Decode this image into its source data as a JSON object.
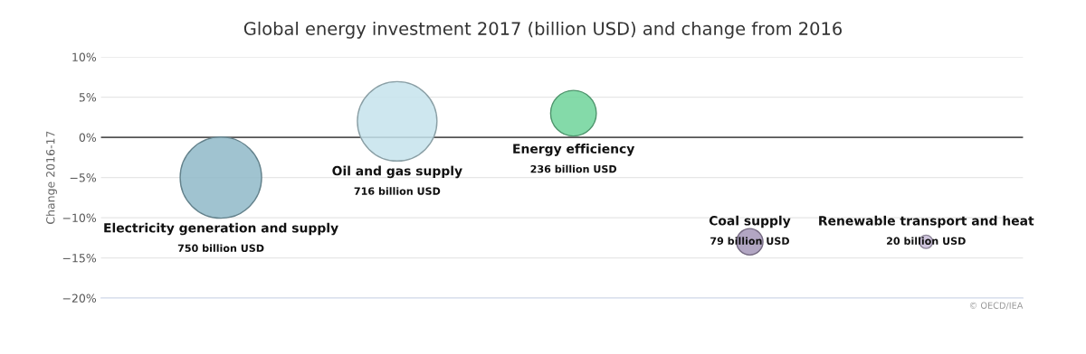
{
  "chart_data": {
    "type": "bubble",
    "title": "Global energy investment 2017 (billion USD) and change from 2016",
    "ylabel": "Change 2016-17",
    "categories": [
      "Electricity generation and supply",
      "Oil and gas supply",
      "Energy efficiency",
      "Coal supply",
      "Renewable transport and heat"
    ],
    "values": [
      -5,
      2,
      3,
      -13,
      -13
    ],
    "sizes": [
      750,
      716,
      236,
      79,
      20
    ],
    "value_labels": [
      "750 billion USD",
      "716 billion USD",
      "236 billion USD",
      "79 billion USD",
      "20 billion USD"
    ],
    "colors": [
      "#8fb9c8",
      "#c5e3ec",
      "#6fd39a",
      "#a596b8",
      "#c8bcd8"
    ],
    "ylim": [
      -20,
      10
    ],
    "yticks": [
      {
        "value": -20,
        "label": "−20%"
      },
      {
        "value": -15,
        "label": "−15%"
      },
      {
        "value": -10,
        "label": "−10%"
      },
      {
        "value": -5,
        "label": "−5%"
      },
      {
        "value": 0,
        "label": "0%"
      },
      {
        "value": 5,
        "label": "5%"
      },
      {
        "value": 10,
        "label": "10%"
      }
    ],
    "grid": "y",
    "ref_lines": [
      {
        "axis": "y",
        "value": 0,
        "color": "#555555"
      }
    ],
    "annotations": [
      "© OECD/IEA"
    ]
  }
}
